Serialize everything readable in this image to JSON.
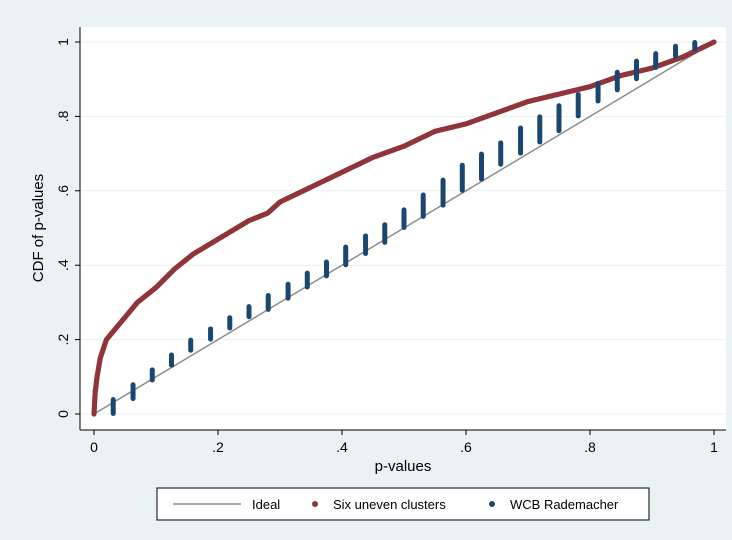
{
  "chart_data": {
    "type": "scatter",
    "title": "",
    "xlabel": "p-values",
    "ylabel": "CDF of p-values",
    "xlim": [
      0,
      1
    ],
    "ylim": [
      0,
      1
    ],
    "x_ticks": [
      0,
      0.2,
      0.4,
      0.6,
      0.8,
      1
    ],
    "x_tick_labels": [
      "0",
      ".2",
      ".4",
      ".6",
      ".8",
      "1"
    ],
    "y_ticks": [
      0,
      0.2,
      0.4,
      0.6,
      0.8,
      1
    ],
    "y_tick_labels": [
      "0",
      ".2",
      ".4",
      ".6",
      ".8",
      "1"
    ],
    "grid": "horizontal",
    "legend_position": "bottom",
    "colors": {
      "background": "#eaf2f3",
      "plot_area": "#ffffff",
      "grid": "#eaf2f3",
      "ideal": "#8c8c8c",
      "uneven": "#90353b",
      "wcb": "#1a476f"
    },
    "series": [
      {
        "name": "Ideal",
        "kind": "line",
        "x": [
          0,
          1
        ],
        "y": [
          0,
          1
        ]
      },
      {
        "name": "Six uneven clusters",
        "kind": "dense-markers",
        "x": [
          0,
          0.002,
          0.005,
          0.01,
          0.02,
          0.03,
          0.05,
          0.07,
          0.1,
          0.13,
          0.16,
          0.2,
          0.25,
          0.28,
          0.3,
          0.35,
          0.4,
          0.45,
          0.5,
          0.55,
          0.6,
          0.65,
          0.7,
          0.75,
          0.8,
          0.85,
          0.9,
          0.95,
          1.0
        ],
        "y": [
          0,
          0.06,
          0.1,
          0.15,
          0.2,
          0.22,
          0.26,
          0.3,
          0.34,
          0.39,
          0.43,
          0.47,
          0.52,
          0.54,
          0.57,
          0.61,
          0.65,
          0.69,
          0.72,
          0.76,
          0.78,
          0.81,
          0.84,
          0.86,
          0.88,
          0.91,
          0.93,
          0.96,
          1.0
        ]
      },
      {
        "name": "WCB Rademacher",
        "kind": "bar-markers",
        "x": [
          0.031,
          0.063,
          0.094,
          0.125,
          0.156,
          0.188,
          0.219,
          0.25,
          0.281,
          0.313,
          0.344,
          0.375,
          0.406,
          0.438,
          0.469,
          0.5,
          0.531,
          0.563,
          0.594,
          0.625,
          0.656,
          0.688,
          0.719,
          0.75,
          0.781,
          0.813,
          0.844,
          0.875,
          0.906,
          0.938,
          0.969
        ],
        "y_low": [
          0.0,
          0.04,
          0.09,
          0.13,
          0.17,
          0.2,
          0.23,
          0.26,
          0.28,
          0.31,
          0.34,
          0.37,
          0.4,
          0.43,
          0.46,
          0.5,
          0.53,
          0.56,
          0.6,
          0.63,
          0.67,
          0.7,
          0.73,
          0.76,
          0.8,
          0.84,
          0.87,
          0.9,
          0.93,
          0.96,
          0.98
        ],
        "y_high": [
          0.04,
          0.08,
          0.12,
          0.16,
          0.2,
          0.23,
          0.26,
          0.29,
          0.32,
          0.35,
          0.38,
          0.41,
          0.45,
          0.48,
          0.51,
          0.55,
          0.59,
          0.63,
          0.67,
          0.7,
          0.73,
          0.77,
          0.8,
          0.83,
          0.86,
          0.89,
          0.92,
          0.95,
          0.97,
          0.99,
          1.0
        ]
      }
    ]
  }
}
